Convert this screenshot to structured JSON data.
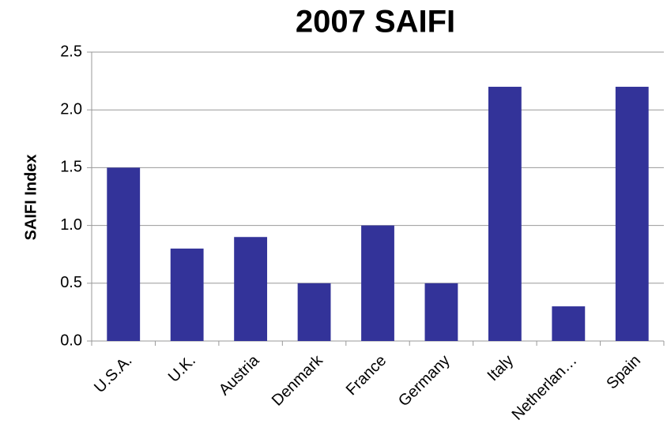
{
  "chart_data": {
    "type": "bar",
    "title": "2007 SAIFI",
    "y_label": "SAIFI Index",
    "categories": [
      "U.S.A.",
      "U.K.",
      "Austria",
      "Denmark",
      "France",
      "Germany",
      "Italy",
      "Netherlan…",
      "Spain"
    ],
    "values": [
      1.5,
      0.8,
      0.9,
      0.5,
      1.0,
      0.5,
      2.2,
      0.3,
      2.2
    ],
    "color": "#333399",
    "ylim": [
      0,
      2.5
    ],
    "yticks": [
      {
        "value": 0,
        "label": "0.0"
      },
      0.5,
      {
        "value": 1,
        "label": "1.0"
      },
      1.5,
      {
        "value": 2,
        "label": "2.0"
      },
      2.5
    ],
    "grid": true
  }
}
